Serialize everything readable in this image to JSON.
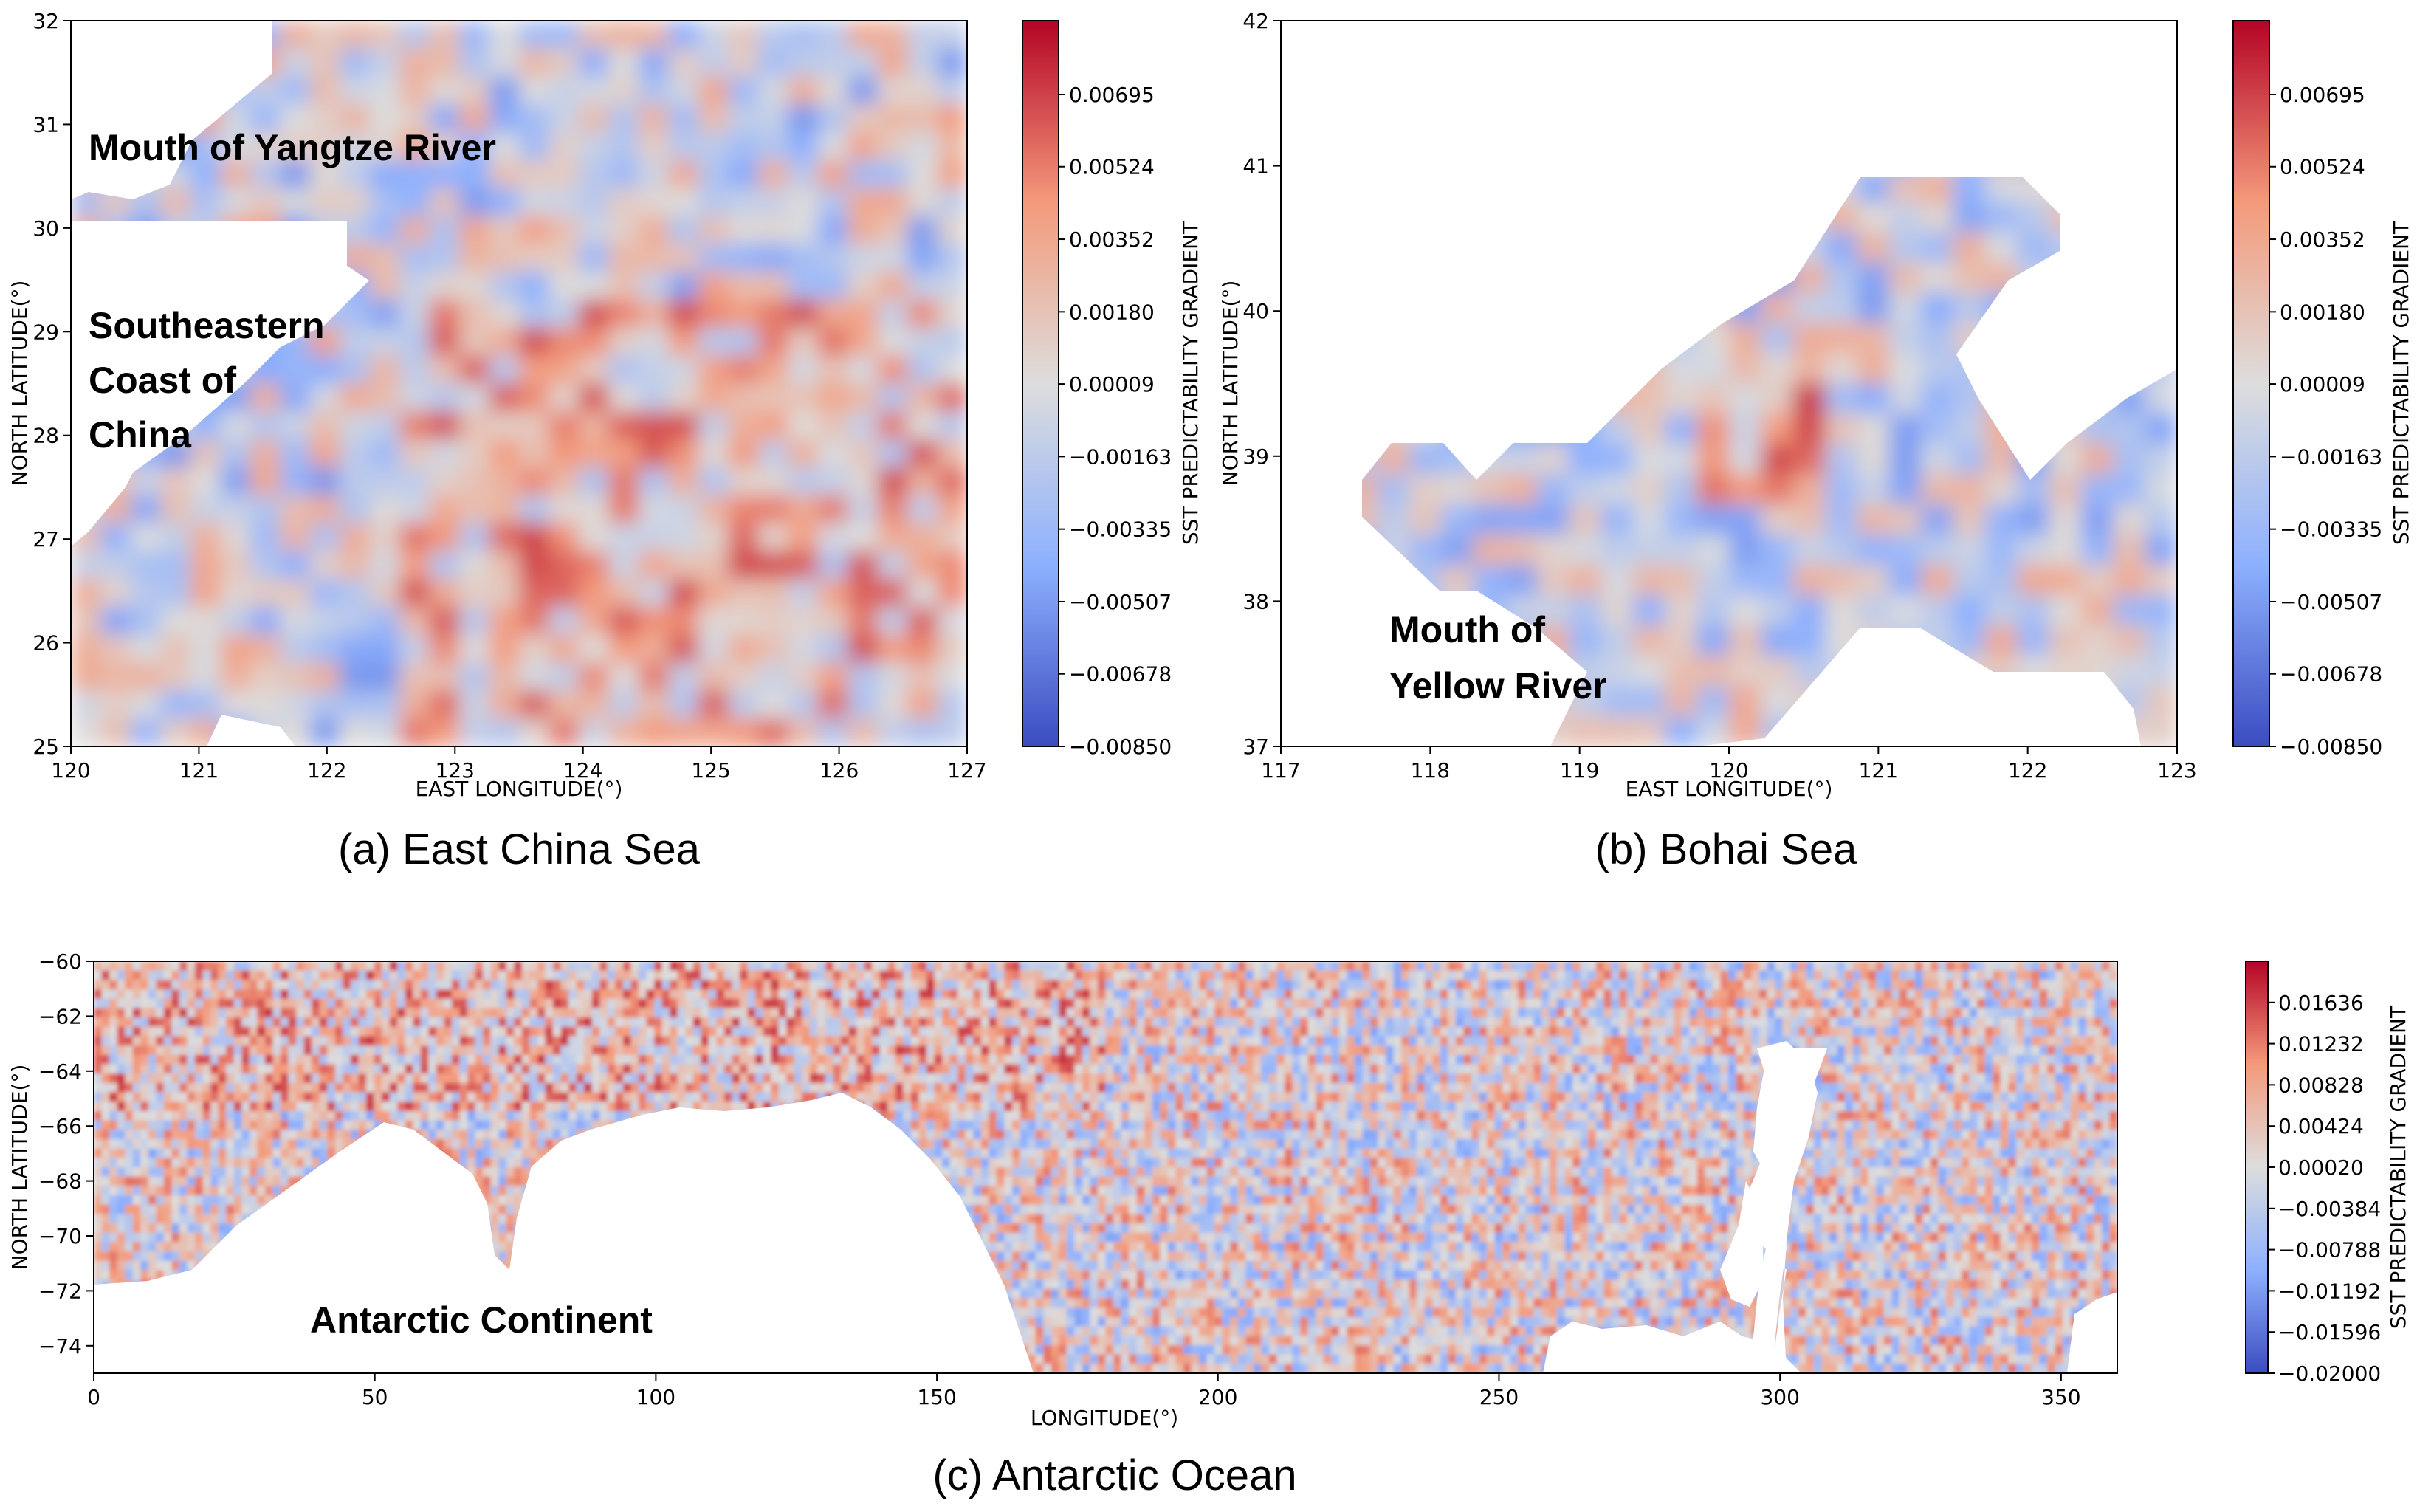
{
  "figure": {
    "panels": [
      {
        "caption": "(a) East China Sea",
        "xlabel": "EAST LONGITUDE(°)",
        "ylabel": "NORTH LATITUDE(°)",
        "xticks": [
          "120",
          "121",
          "122",
          "123",
          "124",
          "125",
          "126",
          "127"
        ],
        "yticks": [
          "25",
          "26",
          "27",
          "28",
          "29",
          "30",
          "31",
          "32"
        ],
        "annotations": [
          "Mouth of Yangtze River",
          "Southeastern",
          "Coast of",
          "China"
        ],
        "colorbar": {
          "label": "SST PREDICTABILITY GRADIENT",
          "ticks": [
            "0.00695",
            "0.00524",
            "0.00352",
            "0.00180",
            "0.00009",
            "−0.00163",
            "−0.00335",
            "−0.00507",
            "−0.00678",
            "−0.00850"
          ]
        }
      },
      {
        "caption": "(b) Bohai Sea",
        "xlabel": "EAST LONGITUDE(°)",
        "ylabel": "NORTH LATITUDE(°)",
        "xticks": [
          "117",
          "118",
          "119",
          "120",
          "121",
          "122",
          "123"
        ],
        "yticks": [
          "37",
          "38",
          "39",
          "40",
          "41",
          "42"
        ],
        "annotations": [
          "Mouth of",
          "Yellow River"
        ],
        "colorbar": {
          "label": "SST PREDICTABILITY GRADIENT",
          "ticks": [
            "0.00695",
            "0.00524",
            "0.00352",
            "0.00180",
            "0.00009",
            "−0.00163",
            "−0.00335",
            "−0.00507",
            "−0.00678",
            "−0.00850"
          ]
        }
      },
      {
        "caption": "(c) Antarctic Ocean",
        "xlabel": "LONGITUDE(°)",
        "ylabel": "NORTH LATITUDE(°)",
        "xticks": [
          "0",
          "50",
          "100",
          "150",
          "200",
          "250",
          "300",
          "350"
        ],
        "yticks": [
          "−60",
          "−62",
          "−64",
          "−66",
          "−68",
          "−70",
          "−72",
          "−74"
        ],
        "annotations": [
          "Antarctic Continent"
        ],
        "colorbar": {
          "label": "SST PREDICTABILITY GRADIENT",
          "ticks": [
            "0.01636",
            "0.01232",
            "0.00828",
            "0.00424",
            "0.00020",
            "−0.00384",
            "−0.00788",
            "−0.01192",
            "−0.01596",
            "−0.02000"
          ]
        }
      }
    ]
  },
  "chart_data": [
    {
      "type": "heatmap",
      "title": "(a) East China Sea",
      "xlabel": "EAST LONGITUDE(°)",
      "ylabel": "NORTH LATITUDE(°)",
      "xlim": [
        120,
        127
      ],
      "ylim": [
        25,
        32
      ],
      "colorbar_label": "SST PREDICTABILITY GRADIENT",
      "clim": [
        -0.0085,
        0.0087
      ],
      "colormap": "coolwarm",
      "colors": {
        "low": "#3b4cc0",
        "mid": "#dddddd",
        "high": "#b40426"
      }
    },
    {
      "type": "heatmap",
      "title": "(b) Bohai Sea",
      "xlabel": "EAST LONGITUDE(°)",
      "ylabel": "NORTH LATITUDE(°)",
      "xlim": [
        117,
        123
      ],
      "ylim": [
        37,
        42
      ],
      "colorbar_label": "SST PREDICTABILITY GRADIENT",
      "clim": [
        -0.0085,
        0.0087
      ],
      "colormap": "coolwarm",
      "colors": {
        "low": "#3b4cc0",
        "mid": "#dddddd",
        "high": "#b40426"
      }
    },
    {
      "type": "heatmap",
      "title": "(c) Antarctic Ocean",
      "xlabel": "LONGITUDE(°)",
      "ylabel": "NORTH LATITUDE(°)",
      "xlim": [
        0,
        360
      ],
      "ylim": [
        -75,
        -60
      ],
      "colorbar_label": "SST PREDICTABILITY GRADIENT",
      "clim": [
        -0.02,
        0.0204
      ],
      "colormap": "coolwarm",
      "colors": {
        "low": "#3b4cc0",
        "mid": "#dddddd",
        "high": "#b40426"
      }
    }
  ]
}
